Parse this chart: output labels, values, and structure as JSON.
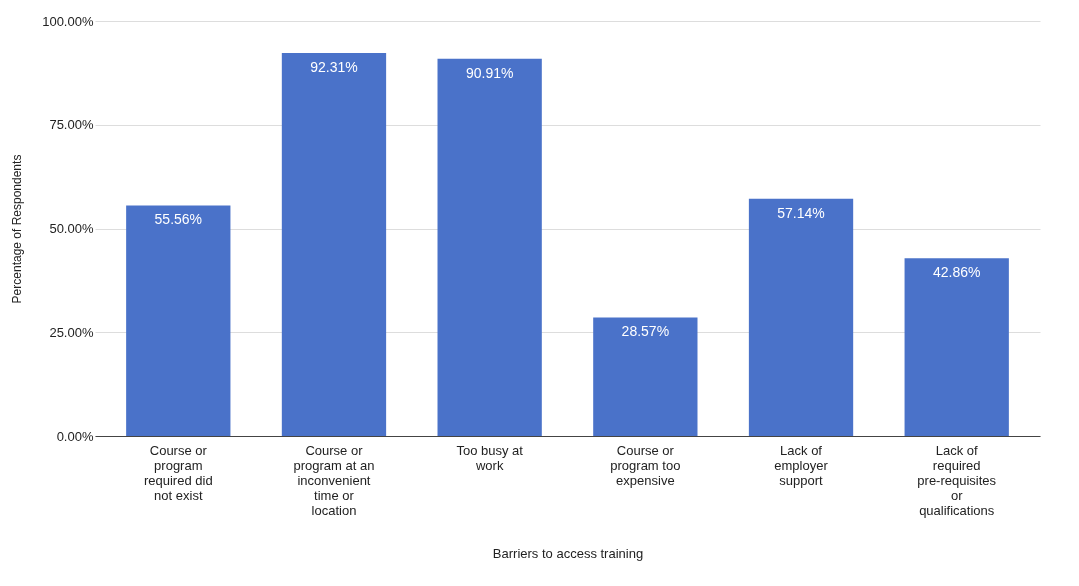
{
  "chart_data": {
    "type": "bar",
    "xlabel": "Barriers to access training",
    "ylabel": "Percentage of Respondents",
    "categories": [
      "Course or program required did not exist",
      "Course or program at an inconvenient time or location",
      "Too busy at work",
      "Course or program too expensive",
      "Lack of employer support",
      "Lack of required pre-requisites or qualifications"
    ],
    "values": [
      55.56,
      92.31,
      90.91,
      28.57,
      57.14,
      42.86
    ],
    "value_labels": [
      "55.56%",
      "92.31%",
      "90.91%",
      "28.57%",
      "57.14%",
      "42.86%"
    ],
    "color": "#4a72c9",
    "ylim": [
      0,
      100
    ],
    "yticks": [
      {
        "value": 0,
        "label": "0.00%"
      },
      {
        "value": 25,
        "label": "25.00%"
      },
      {
        "value": 50,
        "label": "50.00%"
      },
      {
        "value": 75,
        "label": "75.00%"
      },
      {
        "value": 100,
        "label": "100.00%"
      }
    ],
    "grid": "y"
  }
}
